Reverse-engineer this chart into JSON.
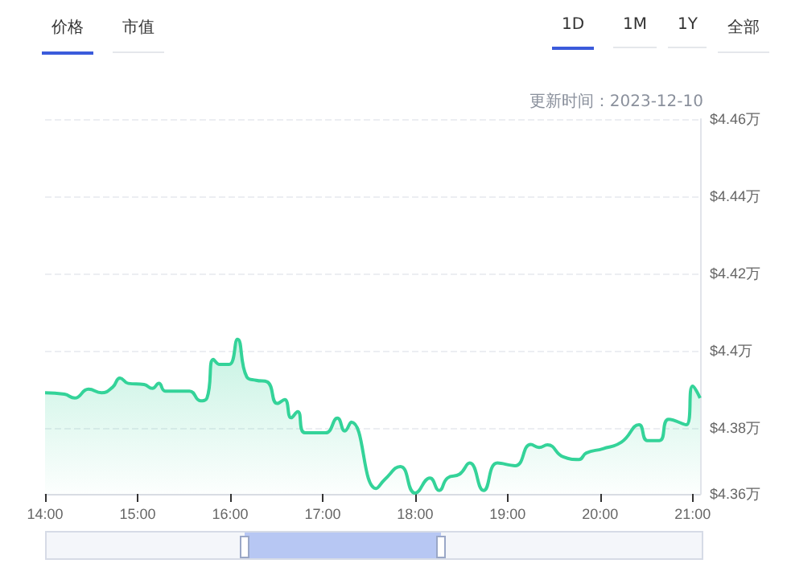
{
  "chart_data": {
    "type": "area",
    "annotations": [
      "价格",
      "市值",
      "1D",
      "1M",
      "1Y",
      "全部",
      "更新时间：2023-12-10"
    ],
    "x": [
      14.0,
      14.21,
      14.32,
      14.47,
      14.61,
      14.73,
      14.81,
      14.9,
      15.07,
      15.16,
      15.23,
      15.3,
      15.56,
      15.68,
      15.75,
      15.82,
      15.89,
      15.99,
      16.08,
      16.18,
      16.28,
      16.4,
      16.51,
      16.59,
      16.66,
      16.73,
      16.81,
      17.03,
      17.16,
      17.24,
      17.31,
      17.58,
      17.67,
      17.84,
      18.0,
      18.16,
      18.26,
      18.35,
      18.48,
      18.59,
      18.74,
      18.89,
      19.08,
      19.25,
      19.34,
      19.43,
      19.6,
      19.77,
      19.85,
      20.03,
      20.23,
      20.42,
      20.51,
      20.64,
      20.74,
      20.93,
      21.0,
      21.08
    ],
    "series": [
      {
        "color": "#34d399",
        "values": [
          4.3892,
          4.3888,
          4.3878,
          4.3901,
          4.3892,
          4.3906,
          4.393,
          4.3916,
          4.3913,
          4.3903,
          4.3916,
          4.3896,
          4.3896,
          4.3871,
          4.3878,
          4.3978,
          4.3965,
          4.3965,
          4.403,
          4.3933,
          4.3924,
          4.392,
          4.3864,
          4.3874,
          4.3827,
          4.3843,
          4.3788,
          4.3788,
          4.3826,
          4.3793,
          4.3816,
          4.3644,
          4.3667,
          4.3701,
          4.3632,
          4.3671,
          4.3639,
          4.3671,
          4.3681,
          4.371,
          4.3639,
          4.371,
          4.3703,
          4.3758,
          4.375,
          4.3757,
          4.3726,
          4.3719,
          4.3736,
          4.3747,
          4.3764,
          4.3809,
          4.3768,
          4.3768,
          4.3823,
          4.3809,
          4.3909,
          4.3878
        ]
      }
    ],
    "xlim": [
      14,
      21.08
    ],
    "xticks": [
      {
        "value": 14,
        "label": "14:00"
      },
      {
        "value": 15,
        "label": "15:00"
      },
      {
        "value": 16,
        "label": "16:00"
      },
      {
        "value": 17,
        "label": "17:00"
      },
      {
        "value": 18,
        "label": "18:00"
      },
      {
        "value": 19,
        "label": "19:00"
      },
      {
        "value": 20,
        "label": "20:00"
      },
      {
        "value": 21,
        "label": "21:00"
      }
    ],
    "ylim": [
      4.363,
      4.46
    ],
    "yticks": [
      {
        "value": 4.363,
        "label": "$4.36万"
      },
      {
        "value": 4.38,
        "label": "$4.38万"
      },
      {
        "value": 4.4,
        "label": "$4.4万"
      },
      {
        "value": 4.42,
        "label": "$4.42万"
      },
      {
        "value": 4.44,
        "label": "$4.44万"
      },
      {
        "value": 4.46,
        "label": "$4.46万"
      }
    ],
    "grid": "y",
    "marker": "none",
    "line_style": "solid"
  }
}
